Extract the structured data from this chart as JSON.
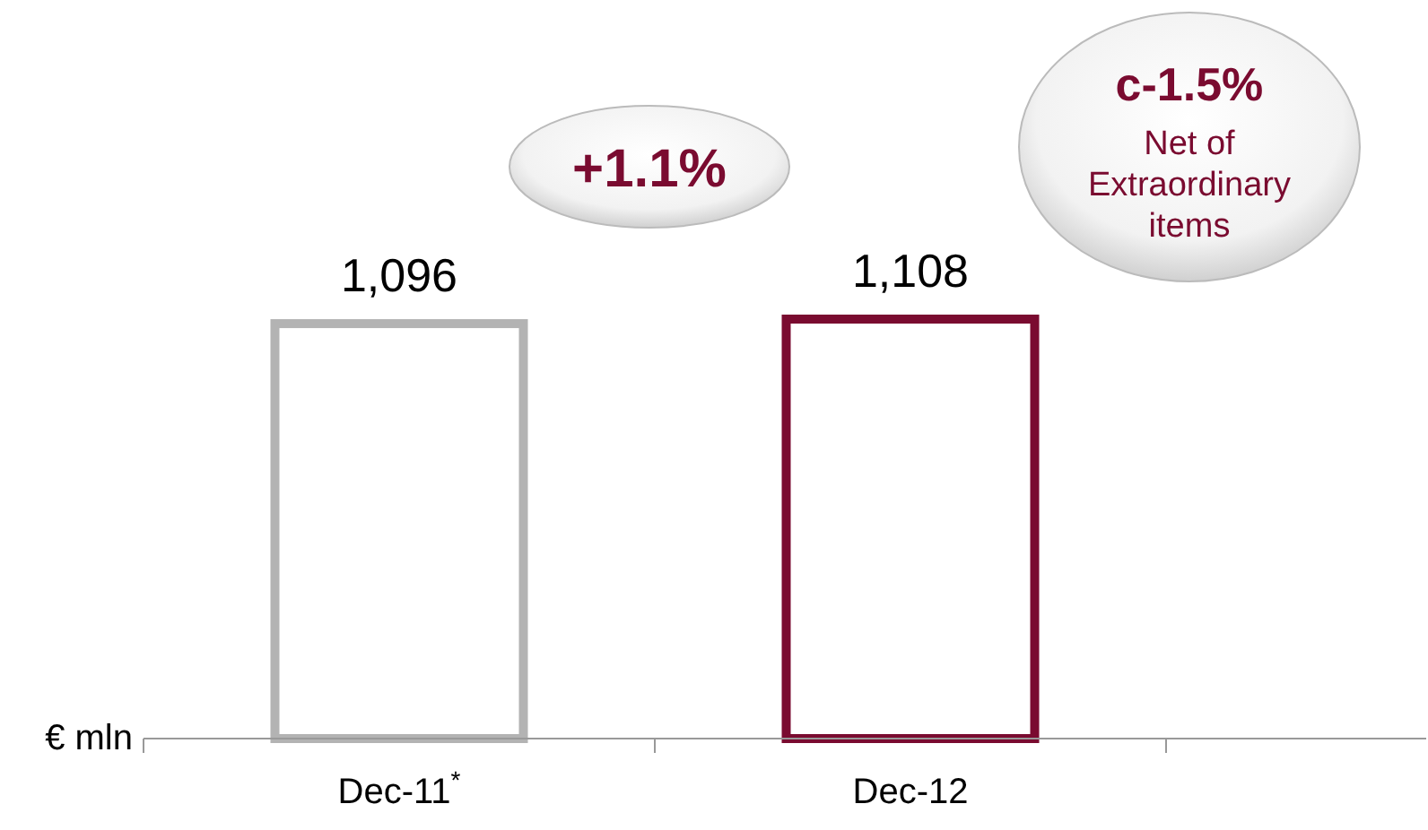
{
  "chart_data": {
    "type": "bar",
    "ylabel": "€ mln",
    "categories": [
      "Dec-11$^{*}$",
      "Dec-12"
    ],
    "values": [
      1096,
      1108
    ],
    "colors": [
      "#b3b3b3",
      "#7a0b30"
    ],
    "data_labels": true,
    "value_labels": [
      "1,096",
      "1,108"
    ],
    "annotations": [
      "+1.1%",
      "c-1.5%",
      "Net of Extraordinary items"
    ]
  }
}
